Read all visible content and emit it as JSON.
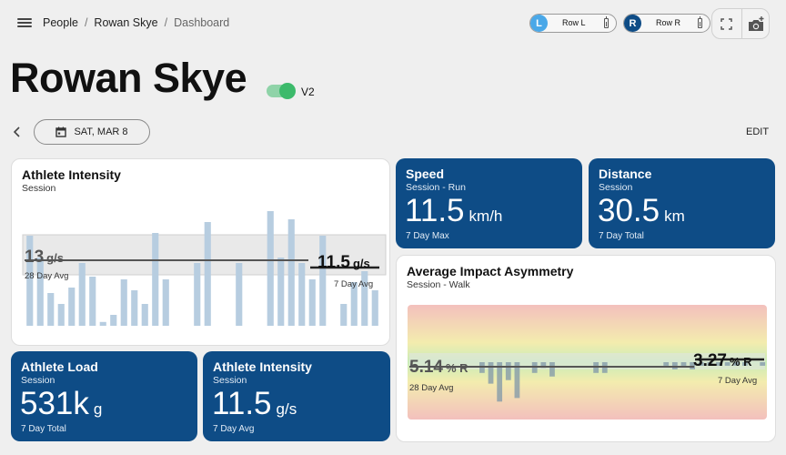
{
  "breadcrumb": {
    "items": [
      "People",
      "Rowan Skye"
    ],
    "current": "Dashboard"
  },
  "sensors": [
    {
      "letter": "L",
      "label": "Row  L",
      "color": "#4aa8e8"
    },
    {
      "letter": "R",
      "label": "Row  R",
      "color": "#0e4c86"
    }
  ],
  "icons": {
    "menu": "menu-icon",
    "fullscreen": "fullscreen-icon",
    "camera": "add-camera-icon",
    "back": "chevron-left-icon",
    "calendar": "calendar-icon"
  },
  "athlete": {
    "name": "Rowan Skye",
    "version_label": "V2",
    "toggle_on": true
  },
  "date": {
    "label": "SAT, MAR 8"
  },
  "edit_label": "EDIT",
  "cards": {
    "intensity_chart": {
      "title": "Athlete Intensity",
      "subtitle": "Session",
      "left_value": "13",
      "left_unit": "g/s",
      "left_label": "28 Day Avg",
      "right_value": "11.5",
      "right_unit": "g/s",
      "right_label": "7 Day Avg"
    },
    "speed": {
      "title": "Speed",
      "subtitle": "Session - Run",
      "value": "11.5",
      "unit": "km/h",
      "footer": "7 Day Max"
    },
    "distance": {
      "title": "Distance",
      "subtitle": "Session",
      "value": "30.5",
      "unit": "km",
      "footer": "7 Day Total"
    },
    "asymmetry": {
      "title": "Average Impact Asymmetry",
      "subtitle": "Session - Walk",
      "left_value": "5.14",
      "left_unit": "% R",
      "left_label": "28 Day Avg",
      "right_value": "3.27",
      "right_unit": "% R",
      "right_label": "7 Day Avg"
    },
    "load": {
      "title": "Athlete Load",
      "subtitle": "Session",
      "value": "531k",
      "unit": "g",
      "footer": "7 Day Total"
    },
    "intensity_small": {
      "title": "Athlete Intensity",
      "subtitle": "Session",
      "value": "11.5",
      "unit": "g/s",
      "footer": "7 Day Avg"
    }
  },
  "chart_data": [
    {
      "type": "bar",
      "chart": "athlete-intensity",
      "values": [
        16.5,
        12.5,
        6,
        4,
        7,
        11.5,
        9,
        0.7,
        2,
        8.5,
        6.5,
        4,
        17,
        8.5,
        0,
        0,
        11.5,
        19,
        0,
        0,
        11.5,
        0,
        0,
        21,
        12.5,
        19.5,
        11.5,
        8.5,
        16.5,
        0,
        4,
        8,
        10,
        6.5
      ],
      "ylim": [
        0,
        23
      ],
      "reference_lines": {
        "avg_28": 13,
        "avg_7": 11.5
      }
    },
    {
      "type": "bar",
      "chart": "average-impact-asymmetry",
      "values": [
        0,
        0,
        0,
        0,
        0,
        0,
        0,
        0,
        -1.5,
        -3,
        -5.5,
        -2.5,
        -5,
        0,
        -1.5,
        -0.8,
        -2,
        0,
        0,
        0,
        0,
        -1.5,
        -1.5,
        0,
        0,
        0,
        0,
        0,
        0,
        -0.5,
        -1,
        -0.5,
        -1,
        -0.5,
        -0.5,
        -0.5,
        -0.5,
        -0.5,
        -0.5,
        0,
        -0.5
      ],
      "ylim": [
        -8,
        8
      ],
      "reference_lines": {
        "avg_28": 5.14,
        "avg_7": 3.27
      },
      "colors": {
        "high": "#f3c0bd",
        "mid": "#f3ecae",
        "center": "#c8ebb8"
      }
    }
  ]
}
